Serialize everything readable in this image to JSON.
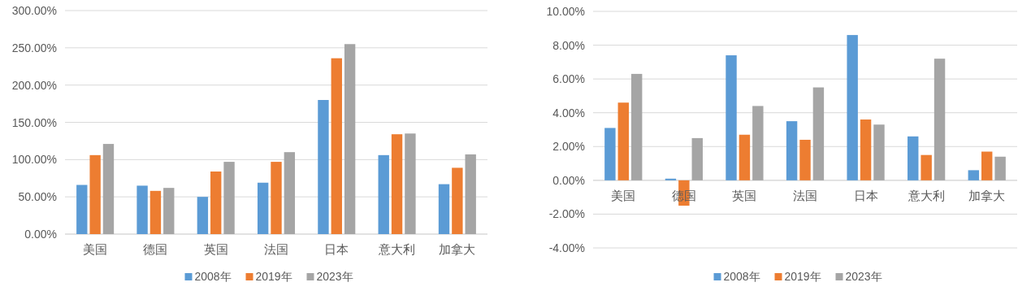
{
  "chart_data": [
    {
      "type": "bar",
      "categories": [
        "美国",
        "德国",
        "英国",
        "法国",
        "日本",
        "意大利",
        "加拿大"
      ],
      "series": [
        {
          "name": "2008年",
          "color": "#5b9bd5",
          "values": [
            66,
            65,
            50,
            69,
            180,
            106,
            67
          ]
        },
        {
          "name": "2019年",
          "color": "#ed7d31",
          "values": [
            106,
            58,
            84,
            97,
            236,
            134,
            89
          ]
        },
        {
          "name": "2023年",
          "color": "#a5a5a5",
          "values": [
            121,
            62,
            97,
            110,
            255,
            135,
            107
          ]
        }
      ],
      "ylim": [
        0,
        300
      ],
      "yticks": [
        {
          "value": 0,
          "label": "0.00%"
        },
        {
          "value": 50,
          "label": "50.00%"
        },
        {
          "value": 100,
          "label": "100.00%"
        },
        {
          "value": 150,
          "label": "150.00%"
        },
        {
          "value": 200,
          "label": "200.00%"
        },
        {
          "value": 250,
          "label": "250.00%"
        },
        {
          "value": 300,
          "label": "300.00%"
        }
      ],
      "grid": "y",
      "legend": "bottom"
    },
    {
      "type": "bar",
      "categories": [
        "美国",
        "德国",
        "英国",
        "法国",
        "日本",
        "意大利",
        "加拿大"
      ],
      "series": [
        {
          "name": "2008年",
          "color": "#5b9bd5",
          "values": [
            3.1,
            0.1,
            7.4,
            3.5,
            8.6,
            2.6,
            0.6
          ]
        },
        {
          "name": "2019年",
          "color": "#ed7d31",
          "values": [
            4.6,
            -1.5,
            2.7,
            2.4,
            3.6,
            1.5,
            1.7
          ]
        },
        {
          "name": "2023年",
          "color": "#a5a5a5",
          "values": [
            6.3,
            2.5,
            4.4,
            5.5,
            3.3,
            7.2,
            1.4
          ]
        }
      ],
      "ylim": [
        -4,
        10
      ],
      "yticks": [
        {
          "value": -4,
          "label": "-4.00%"
        },
        {
          "value": -2,
          "label": "-2.00%"
        },
        {
          "value": 0,
          "label": "0.00%"
        },
        {
          "value": 2,
          "label": "2.00%"
        },
        {
          "value": 4,
          "label": "4.00%"
        },
        {
          "value": 6,
          "label": "6.00%"
        },
        {
          "value": 8,
          "label": "8.00%"
        },
        {
          "value": 10,
          "label": "10.00%"
        }
      ],
      "grid": "y",
      "legend": "bottom"
    }
  ]
}
